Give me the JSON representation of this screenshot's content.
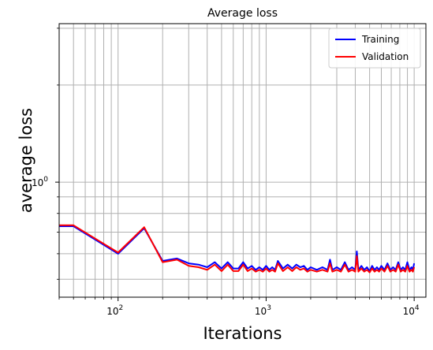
{
  "chart_data": {
    "type": "line",
    "title": "Average loss",
    "xlabel": "Iterations",
    "ylabel": "average loss",
    "xscale": "log",
    "yscale": "log",
    "xlim": [
      40,
      12000
    ],
    "ylim": [
      0.44,
      3.1
    ],
    "grid": true,
    "legend_position": "top-right",
    "x_ticks": [
      {
        "value": 100,
        "base": "10",
        "exp": "2"
      },
      {
        "value": 1000,
        "base": "10",
        "exp": "3"
      },
      {
        "value": 10000,
        "base": "10",
        "exp": "4"
      }
    ],
    "y_ticks": [
      {
        "value": 1.0,
        "label": "10",
        "exp": "0"
      }
    ],
    "series": [
      {
        "name": "Training",
        "color": "#0000ff",
        "x": [
          40,
          50,
          100,
          150,
          200,
          250,
          300,
          350,
          400,
          450,
          500,
          550,
          600,
          650,
          700,
          750,
          800,
          850,
          900,
          950,
          1000,
          1050,
          1100,
          1150,
          1200,
          1300,
          1400,
          1500,
          1600,
          1700,
          1800,
          1900,
          2000,
          2200,
          2400,
          2600,
          2700,
          2800,
          3000,
          3200,
          3400,
          3600,
          3800,
          4000,
          4100,
          4200,
          4400,
          4600,
          4800,
          5000,
          5200,
          5400,
          5600,
          5800,
          6000,
          6300,
          6600,
          6900,
          7200,
          7500,
          7800,
          8100,
          8400,
          8700,
          9000,
          9300,
          9600,
          9800,
          10000
        ],
        "y": [
          0.73,
          0.73,
          0.6,
          0.72,
          0.57,
          0.58,
          0.56,
          0.555,
          0.545,
          0.565,
          0.54,
          0.565,
          0.54,
          0.54,
          0.565,
          0.54,
          0.55,
          0.535,
          0.545,
          0.535,
          0.55,
          0.535,
          0.545,
          0.535,
          0.57,
          0.54,
          0.555,
          0.54,
          0.555,
          0.545,
          0.55,
          0.535,
          0.545,
          0.535,
          0.545,
          0.535,
          0.575,
          0.535,
          0.545,
          0.535,
          0.565,
          0.535,
          0.545,
          0.535,
          0.61,
          0.535,
          0.55,
          0.535,
          0.545,
          0.53,
          0.55,
          0.535,
          0.545,
          0.535,
          0.55,
          0.535,
          0.56,
          0.535,
          0.545,
          0.535,
          0.565,
          0.535,
          0.545,
          0.535,
          0.565,
          0.535,
          0.545,
          0.535,
          0.56
        ]
      },
      {
        "name": "Validation",
        "color": "#ff0000",
        "x": [
          40,
          50,
          100,
          150,
          200,
          250,
          300,
          350,
          400,
          450,
          500,
          550,
          600,
          650,
          700,
          750,
          800,
          850,
          900,
          950,
          1000,
          1050,
          1100,
          1150,
          1200,
          1300,
          1400,
          1500,
          1600,
          1700,
          1800,
          1900,
          2000,
          2200,
          2400,
          2600,
          2700,
          2800,
          3000,
          3200,
          3400,
          3600,
          3800,
          4000,
          4100,
          4200,
          4400,
          4600,
          4800,
          5000,
          5200,
          5400,
          5600,
          5800,
          6000,
          6300,
          6600,
          6900,
          7200,
          7500,
          7800,
          8100,
          8400,
          8700,
          9000,
          9300,
          9600,
          9800,
          10000
        ],
        "y": [
          0.735,
          0.735,
          0.605,
          0.725,
          0.565,
          0.575,
          0.55,
          0.545,
          0.535,
          0.555,
          0.53,
          0.555,
          0.53,
          0.53,
          0.555,
          0.53,
          0.54,
          0.528,
          0.535,
          0.528,
          0.54,
          0.528,
          0.535,
          0.528,
          0.56,
          0.53,
          0.545,
          0.53,
          0.545,
          0.535,
          0.54,
          0.528,
          0.535,
          0.528,
          0.535,
          0.528,
          0.56,
          0.528,
          0.535,
          0.528,
          0.555,
          0.528,
          0.535,
          0.528,
          0.59,
          0.528,
          0.54,
          0.528,
          0.535,
          0.525,
          0.54,
          0.528,
          0.535,
          0.528,
          0.54,
          0.528,
          0.55,
          0.528,
          0.535,
          0.528,
          0.555,
          0.528,
          0.535,
          0.528,
          0.55,
          0.528,
          0.535,
          0.528,
          0.545
        ]
      }
    ]
  }
}
